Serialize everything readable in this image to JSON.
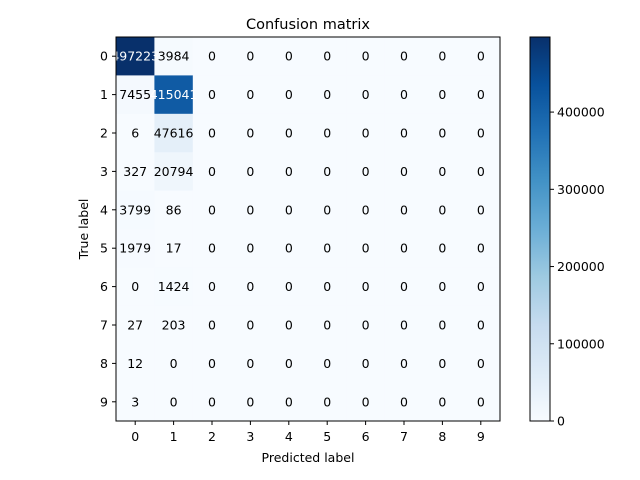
{
  "chart_data": {
    "type": "heatmap",
    "title": "Confusion matrix",
    "xlabel": "Predicted label",
    "ylabel": "True label",
    "x_categories": [
      "0",
      "1",
      "2",
      "3",
      "4",
      "5",
      "6",
      "7",
      "8",
      "9"
    ],
    "y_categories": [
      "0",
      "1",
      "2",
      "3",
      "4",
      "5",
      "6",
      "7",
      "8",
      "9"
    ],
    "values": [
      [
        497223,
        3984,
        0,
        0,
        0,
        0,
        0,
        0,
        0,
        0
      ],
      [
        7455,
        415041,
        0,
        0,
        0,
        0,
        0,
        0,
        0,
        0
      ],
      [
        6,
        47616,
        0,
        0,
        0,
        0,
        0,
        0,
        0,
        0
      ],
      [
        327,
        20794,
        0,
        0,
        0,
        0,
        0,
        0,
        0,
        0
      ],
      [
        3799,
        86,
        0,
        0,
        0,
        0,
        0,
        0,
        0,
        0
      ],
      [
        1979,
        17,
        0,
        0,
        0,
        0,
        0,
        0,
        0,
        0
      ],
      [
        0,
        1424,
        0,
        0,
        0,
        0,
        0,
        0,
        0,
        0
      ],
      [
        27,
        203,
        0,
        0,
        0,
        0,
        0,
        0,
        0,
        0
      ],
      [
        12,
        0,
        0,
        0,
        0,
        0,
        0,
        0,
        0,
        0
      ],
      [
        3,
        0,
        0,
        0,
        0,
        0,
        0,
        0,
        0,
        0
      ]
    ],
    "colormap": "Blues",
    "colorbar": {
      "range": [
        0,
        497223
      ],
      "ticks": [
        0,
        100000,
        200000,
        300000,
        400000
      ],
      "tick_labels": [
        "0",
        "100000",
        "200000",
        "300000",
        "400000"
      ]
    },
    "grid": false
  }
}
